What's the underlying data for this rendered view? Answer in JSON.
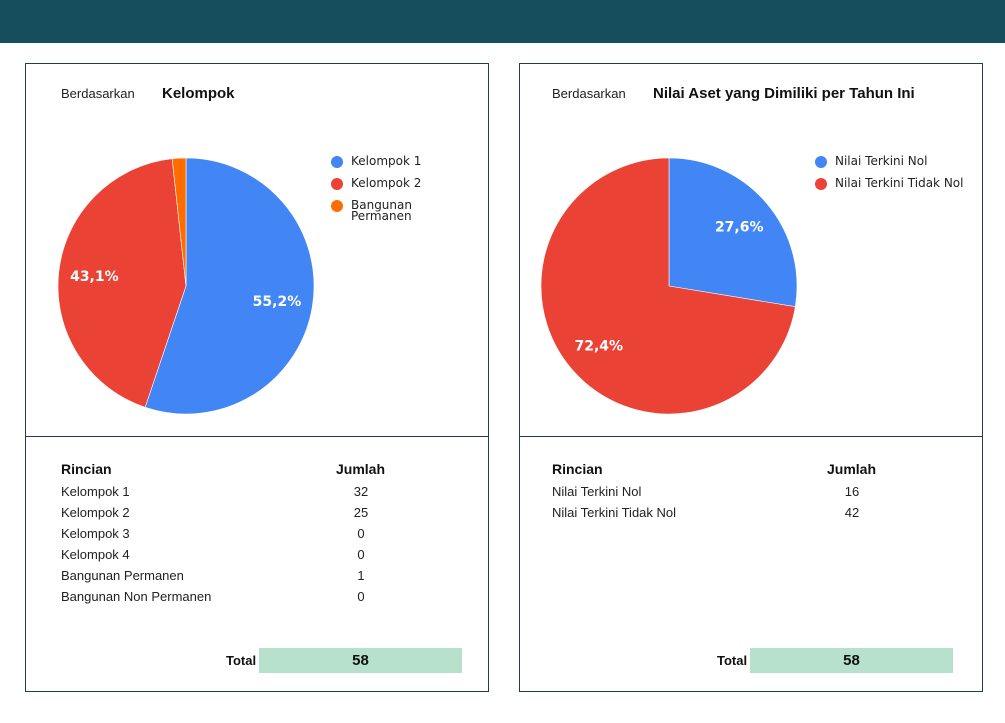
{
  "colors": {
    "header_bar": "#174e5e",
    "blue": "#4285f4",
    "red": "#ea4335",
    "orange": "#ff6d01",
    "total_fill": "#b7e1cd"
  },
  "left_panel": {
    "header_prefix": "Berdasarkan",
    "header_title": "Kelompok",
    "chart_data": {
      "type": "pie",
      "legend_position": "right",
      "slices": [
        {
          "label": "Kelompok 1",
          "value": 32,
          "percent_label": "55,2%",
          "color": "#4285f4"
        },
        {
          "label": "Kelompok 2",
          "value": 25,
          "percent_label": "43,1%",
          "color": "#ea4335"
        },
        {
          "label": "Bangunan Permanen",
          "value": 1,
          "percent_label": "",
          "color": "#ff6d01"
        }
      ]
    },
    "legend": [
      "Kelompok 1",
      "Kelompok 2",
      "Bangunan Permanen"
    ],
    "table": {
      "col_label": "Rincian",
      "col_value": "Jumlah",
      "rows": [
        {
          "label": "Kelompok 1",
          "value": "32"
        },
        {
          "label": "Kelompok 2",
          "value": "25"
        },
        {
          "label": "Kelompok 3",
          "value": "0"
        },
        {
          "label": "Kelompok 4",
          "value": "0"
        },
        {
          "label": "Bangunan Permanen",
          "value": "1"
        },
        {
          "label": "Bangunan Non Permanen",
          "value": "0"
        }
      ],
      "total_label": "Total",
      "total_value": "58"
    }
  },
  "right_panel": {
    "header_prefix": "Berdasarkan",
    "header_title": "Nilai Aset yang Dimiliki per Tahun Ini",
    "chart_data": {
      "type": "pie",
      "legend_position": "right",
      "slices": [
        {
          "label": "Nilai Terkini Nol",
          "value": 16,
          "percent_label": "27,6%",
          "color": "#4285f4"
        },
        {
          "label": "Nilai Terkini Tidak Nol",
          "value": 42,
          "percent_label": "72,4%",
          "color": "#ea4335"
        }
      ]
    },
    "legend": [
      "Nilai Terkini Nol",
      "Nilai Terkini Tidak Nol"
    ],
    "table": {
      "col_label": "Rincian",
      "col_value": "Jumlah",
      "rows": [
        {
          "label": "Nilai Terkini Nol",
          "value": "16"
        },
        {
          "label": "Nilai Terkini Tidak Nol",
          "value": "42"
        }
      ],
      "total_label": "Total",
      "total_value": "58"
    }
  }
}
